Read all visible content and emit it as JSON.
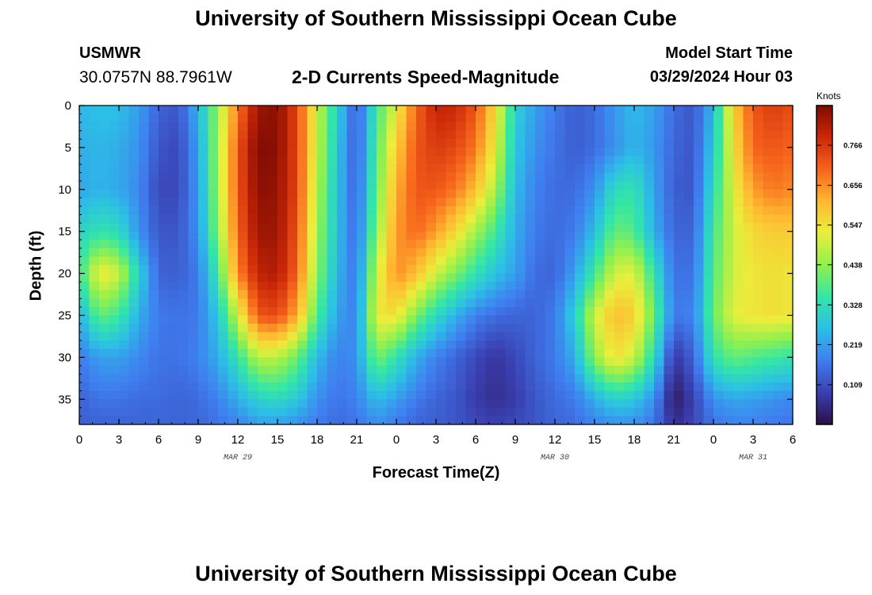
{
  "header": {
    "title": "University of Southern Mississippi Ocean Cube",
    "station": "USMWR",
    "coordinates": "30.0757N  88.7961W",
    "subtitle": "2-D Currents Speed-Magnitude",
    "model_start_label": "Model Start Time",
    "model_start_value": "03/29/2024 Hour 03"
  },
  "footer": {
    "title": "University of Southern Mississippi Ocean Cube"
  },
  "chart_data": {
    "type": "heatmap",
    "title": "2-D Currents Speed-Magnitude",
    "xlabel": "Forecast Time(Z)",
    "ylabel": "Depth (ft)",
    "x_unit": "hours since 03/29 00Z",
    "xlim": [
      0,
      54
    ],
    "ylim": [
      38,
      0
    ],
    "x_ticks": [
      {
        "value": 0,
        "label": "0"
      },
      {
        "value": 3,
        "label": "3"
      },
      {
        "value": 6,
        "label": "6"
      },
      {
        "value": 9,
        "label": "9"
      },
      {
        "value": 12,
        "label": "12"
      },
      {
        "value": 15,
        "label": "15"
      },
      {
        "value": 18,
        "label": "18"
      },
      {
        "value": 21,
        "label": "21"
      },
      {
        "value": 24,
        "label": "0"
      },
      {
        "value": 27,
        "label": "3"
      },
      {
        "value": 30,
        "label": "6"
      },
      {
        "value": 33,
        "label": "9"
      },
      {
        "value": 36,
        "label": "12"
      },
      {
        "value": 39,
        "label": "15"
      },
      {
        "value": 42,
        "label": "18"
      },
      {
        "value": 45,
        "label": "21"
      },
      {
        "value": 48,
        "label": "0"
      },
      {
        "value": 51,
        "label": "3"
      },
      {
        "value": 54,
        "label": "6"
      }
    ],
    "y_ticks": [
      0,
      5,
      10,
      15,
      20,
      25,
      30,
      35
    ],
    "date_labels": [
      {
        "x": 12,
        "label": "MAR 29"
      },
      {
        "x": 36,
        "label": "MAR 30"
      },
      {
        "x": 51,
        "label": "MAR 31"
      }
    ],
    "colorbar": {
      "unit": "Knots",
      "min": 0.0,
      "max": 0.875,
      "ticks": [
        0.109,
        0.219,
        0.328,
        0.438,
        0.547,
        0.656,
        0.766
      ],
      "colors": [
        "#2a0f45",
        "#3a3fb0",
        "#3f7ef0",
        "#2cbfe6",
        "#33e6a6",
        "#8ff04e",
        "#eaee3b",
        "#ffb830",
        "#f6641c",
        "#cc2808",
        "#7d0b02"
      ]
    },
    "series": [
      {
        "name": "depth_0_ft",
        "values": [
          0.25,
          0.27,
          0.26,
          0.22,
          0.14,
          0.12,
          0.25,
          0.45,
          0.68,
          0.84,
          0.86,
          0.74,
          0.5,
          0.3,
          0.12,
          0.36,
          0.52,
          0.7,
          0.8,
          0.79,
          0.72,
          0.56,
          0.3,
          0.22,
          0.17,
          0.13,
          0.15,
          0.21,
          0.26,
          0.22,
          0.15,
          0.12,
          0.25,
          0.58,
          0.72,
          0.76,
          0.73
        ]
      },
      {
        "name": "depth_5_ft",
        "values": [
          0.24,
          0.25,
          0.24,
          0.2,
          0.12,
          0.1,
          0.22,
          0.46,
          0.72,
          0.87,
          0.86,
          0.74,
          0.5,
          0.28,
          0.12,
          0.38,
          0.58,
          0.72,
          0.76,
          0.74,
          0.68,
          0.52,
          0.28,
          0.2,
          0.16,
          0.13,
          0.15,
          0.2,
          0.25,
          0.21,
          0.14,
          0.12,
          0.28,
          0.55,
          0.7,
          0.72,
          0.7
        ]
      },
      {
        "name": "depth_10_ft",
        "values": [
          0.23,
          0.25,
          0.23,
          0.19,
          0.1,
          0.1,
          0.21,
          0.46,
          0.72,
          0.86,
          0.85,
          0.74,
          0.48,
          0.27,
          0.13,
          0.4,
          0.62,
          0.72,
          0.72,
          0.68,
          0.6,
          0.46,
          0.26,
          0.18,
          0.15,
          0.15,
          0.2,
          0.32,
          0.34,
          0.22,
          0.13,
          0.12,
          0.32,
          0.52,
          0.64,
          0.68,
          0.66
        ]
      },
      {
        "name": "depth_15_ft",
        "values": [
          0.3,
          0.34,
          0.32,
          0.2,
          0.12,
          0.12,
          0.2,
          0.44,
          0.7,
          0.84,
          0.84,
          0.72,
          0.46,
          0.27,
          0.14,
          0.44,
          0.64,
          0.7,
          0.64,
          0.56,
          0.46,
          0.36,
          0.24,
          0.17,
          0.15,
          0.17,
          0.26,
          0.4,
          0.38,
          0.24,
          0.14,
          0.14,
          0.36,
          0.5,
          0.56,
          0.58,
          0.58
        ]
      },
      {
        "name": "depth_20_ft",
        "values": [
          0.35,
          0.54,
          0.5,
          0.3,
          0.14,
          0.13,
          0.17,
          0.36,
          0.66,
          0.8,
          0.82,
          0.7,
          0.44,
          0.25,
          0.16,
          0.5,
          0.66,
          0.6,
          0.5,
          0.42,
          0.34,
          0.27,
          0.22,
          0.15,
          0.14,
          0.22,
          0.36,
          0.5,
          0.52,
          0.34,
          0.16,
          0.16,
          0.38,
          0.5,
          0.54,
          0.55,
          0.54
        ]
      },
      {
        "name": "depth_25_ft",
        "values": [
          0.24,
          0.4,
          0.36,
          0.24,
          0.17,
          0.16,
          0.17,
          0.28,
          0.5,
          0.72,
          0.74,
          0.62,
          0.38,
          0.22,
          0.18,
          0.54,
          0.55,
          0.42,
          0.32,
          0.24,
          0.18,
          0.15,
          0.14,
          0.14,
          0.17,
          0.3,
          0.5,
          0.6,
          0.58,
          0.4,
          0.17,
          0.18,
          0.4,
          0.52,
          0.54,
          0.55,
          0.54
        ]
      },
      {
        "name": "depth_30_ft",
        "values": [
          0.17,
          0.22,
          0.22,
          0.19,
          0.16,
          0.16,
          0.18,
          0.24,
          0.34,
          0.48,
          0.48,
          0.4,
          0.26,
          0.18,
          0.2,
          0.42,
          0.34,
          0.24,
          0.18,
          0.14,
          0.1,
          0.07,
          0.1,
          0.14,
          0.17,
          0.24,
          0.44,
          0.55,
          0.5,
          0.32,
          0.07,
          0.14,
          0.34,
          0.4,
          0.38,
          0.36,
          0.34
        ]
      },
      {
        "name": "depth_35_ft",
        "values": [
          0.14,
          0.16,
          0.16,
          0.15,
          0.15,
          0.14,
          0.15,
          0.18,
          0.24,
          0.3,
          0.32,
          0.28,
          0.2,
          0.16,
          0.18,
          0.26,
          0.22,
          0.17,
          0.14,
          0.12,
          0.08,
          0.06,
          0.08,
          0.12,
          0.15,
          0.17,
          0.24,
          0.3,
          0.28,
          0.2,
          0.02,
          0.09,
          0.2,
          0.23,
          0.22,
          0.2,
          0.19
        ]
      },
      {
        "name": "depth_38_ft",
        "values": [
          0.13,
          0.14,
          0.14,
          0.14,
          0.14,
          0.14,
          0.14,
          0.16,
          0.18,
          0.22,
          0.22,
          0.2,
          0.17,
          0.15,
          0.16,
          0.2,
          0.17,
          0.14,
          0.13,
          0.12,
          0.1,
          0.09,
          0.1,
          0.12,
          0.14,
          0.15,
          0.18,
          0.2,
          0.2,
          0.16,
          0.06,
          0.1,
          0.16,
          0.18,
          0.18,
          0.17,
          0.16
        ]
      }
    ],
    "depths": [
      0,
      5,
      10,
      15,
      20,
      25,
      30,
      35,
      38
    ],
    "times": [
      0,
      1.5,
      3,
      4.5,
      6,
      7.5,
      9,
      10.5,
      12,
      13.5,
      15,
      16.5,
      18,
      19.5,
      21,
      22.5,
      24,
      25.5,
      27,
      28.5,
      30,
      31.5,
      33,
      34.5,
      36,
      37.5,
      39,
      40.5,
      42,
      43.5,
      45,
      46.5,
      48,
      49.5,
      51,
      52.5,
      54
    ]
  }
}
